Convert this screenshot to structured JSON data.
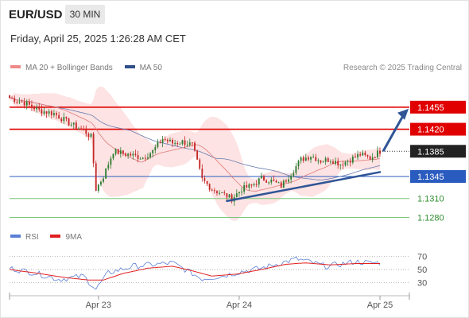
{
  "header": {
    "pair": "EUR/USD",
    "timeframe": "30 MIN"
  },
  "datetime": "Friday, April 25, 2025 1:26:28 AM CET",
  "credit": "Research © 2025 Trading Central",
  "legend_main": [
    {
      "label": "MA 20 + Bollinger Bands",
      "color": "#f08a8a"
    },
    {
      "label": "MA 50",
      "color": "#2f4f8a"
    }
  ],
  "legend_rsi": [
    {
      "label": "RSI",
      "color": "#5b7fd6"
    },
    {
      "label": "9MA",
      "color": "#e02020"
    }
  ],
  "colors": {
    "red_level": "#e00000",
    "blue_level": "#2a5bbf",
    "green_level": "#7cc77c",
    "candle_up": "#2e7d32",
    "candle_down": "#c62828",
    "band_fill": "#fde3e3",
    "trend": "#2f5597",
    "current_price_box": "#222222"
  },
  "chart_data": [
    {
      "type": "candlestick",
      "title": "",
      "x_tick_labels": [
        "Apr 23",
        "Apr 24",
        "Apr 25"
      ],
      "y_range": [
        1.1268,
        1.148
      ],
      "levels": [
        {
          "label": "1.1455",
          "value": 1.1455,
          "style": "resistance"
        },
        {
          "label": "1.1420",
          "value": 1.142,
          "style": "resistance"
        },
        {
          "label": "1.1385",
          "value": 1.1385,
          "style": "current"
        },
        {
          "label": "1.1345",
          "value": 1.1345,
          "style": "pivot"
        },
        {
          "label": "1.1310",
          "value": 1.131,
          "style": "support"
        },
        {
          "label": "1.1280",
          "value": 1.128,
          "style": "support"
        }
      ],
      "close_anchors": [
        [
          0,
          1.147
        ],
        [
          6,
          1.1462
        ],
        [
          12,
          1.145
        ],
        [
          18,
          1.1445
        ],
        [
          24,
          1.143
        ],
        [
          30,
          1.1418
        ],
        [
          33,
          1.1408
        ],
        [
          35,
          1.1325
        ],
        [
          38,
          1.1345
        ],
        [
          42,
          1.1385
        ],
        [
          48,
          1.138
        ],
        [
          54,
          1.1375
        ],
        [
          58,
          1.1385
        ],
        [
          62,
          1.1405
        ],
        [
          66,
          1.1398
        ],
        [
          70,
          1.14
        ],
        [
          74,
          1.1395
        ],
        [
          78,
          1.134
        ],
        [
          82,
          1.1325
        ],
        [
          86,
          1.1318
        ],
        [
          90,
          1.131
        ],
        [
          94,
          1.1325
        ],
        [
          98,
          1.133
        ],
        [
          102,
          1.1342
        ],
        [
          106,
          1.1338
        ],
        [
          110,
          1.133
        ],
        [
          114,
          1.135
        ],
        [
          118,
          1.1372
        ],
        [
          122,
          1.1378
        ],
        [
          126,
          1.137
        ],
        [
          130,
          1.1372
        ],
        [
          134,
          1.1365
        ],
        [
          138,
          1.1372
        ],
        [
          142,
          1.138
        ],
        [
          146,
          1.1374
        ],
        [
          150,
          1.1385
        ]
      ],
      "trendline": [
        [
          88,
          1.1306
        ],
        [
          150,
          1.1352
        ]
      ],
      "projection_arrow": [
        [
          150,
          1.1385
        ],
        [
          165,
          1.1455
        ]
      ],
      "candle_count": 151
    },
    {
      "type": "line",
      "title": "RSI",
      "y_ticks": [
        "70",
        "50",
        "30"
      ],
      "y_range": [
        15,
        85
      ],
      "series": [
        {
          "name": "RSI",
          "anchors": [
            [
              0,
              52
            ],
            [
              10,
              45
            ],
            [
              20,
              35
            ],
            [
              30,
              40
            ],
            [
              35,
              20
            ],
            [
              40,
              45
            ],
            [
              50,
              55
            ],
            [
              60,
              58
            ],
            [
              66,
              60
            ],
            [
              72,
              48
            ],
            [
              78,
              36
            ],
            [
              86,
              40
            ],
            [
              94,
              47
            ],
            [
              102,
              52
            ],
            [
              110,
              60
            ],
            [
              116,
              66
            ],
            [
              120,
              63
            ],
            [
              128,
              55
            ],
            [
              134,
              58
            ],
            [
              140,
              62
            ],
            [
              146,
              60
            ],
            [
              150,
              60
            ]
          ]
        },
        {
          "name": "9MA",
          "anchors": [
            [
              0,
              50
            ],
            [
              12,
              44
            ],
            [
              22,
              38
            ],
            [
              32,
              34
            ],
            [
              38,
              34
            ],
            [
              46,
              44
            ],
            [
              56,
              52
            ],
            [
              66,
              55
            ],
            [
              74,
              48
            ],
            [
              82,
              40
            ],
            [
              92,
              43
            ],
            [
              102,
              50
            ],
            [
              112,
              58
            ],
            [
              120,
              60
            ],
            [
              130,
              57
            ],
            [
              140,
              59
            ],
            [
              150,
              59
            ]
          ]
        }
      ]
    }
  ]
}
